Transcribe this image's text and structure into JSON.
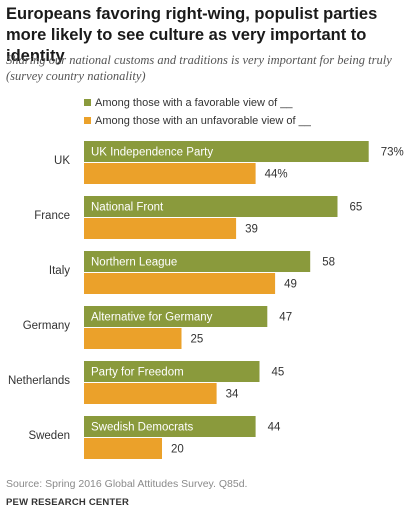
{
  "chart_data": {
    "type": "bar",
    "orientation": "horizontal",
    "title": "Europeans favoring right-wing, populist parties more likely to see culture as very important to identity",
    "subtitle": "Sharing our national customs and traditions is very important for being truly (survey country nationality)",
    "categories": [
      "UK",
      "France",
      "Italy",
      "Germany",
      "Netherlands",
      "Sweden"
    ],
    "party_labels": [
      "UK Independence Party",
      "National Front",
      "Northern League",
      "Alternative for Germany",
      "Party for Freedom",
      "Swedish Democrats"
    ],
    "series": [
      {
        "name": "Among those with a favorable view of __",
        "color": "#8a9a3c",
        "values": [
          73,
          65,
          58,
          47,
          45,
          44
        ],
        "value_labels": [
          "73%",
          "65",
          "58",
          "47",
          "45",
          "44"
        ]
      },
      {
        "name": "Among those with an unfavorable view of __",
        "color": "#eba12a",
        "values": [
          44,
          39,
          49,
          25,
          34,
          20
        ],
        "value_labels": [
          "44%",
          "39",
          "49",
          "25",
          "34",
          "20"
        ]
      }
    ],
    "xlim": [
      0,
      100
    ],
    "grid": false,
    "legend": "top-left"
  },
  "source": "Source: Spring 2016 Global Attitudes Survey. Q85d.",
  "organization": "PEW RESEARCH CENTER"
}
